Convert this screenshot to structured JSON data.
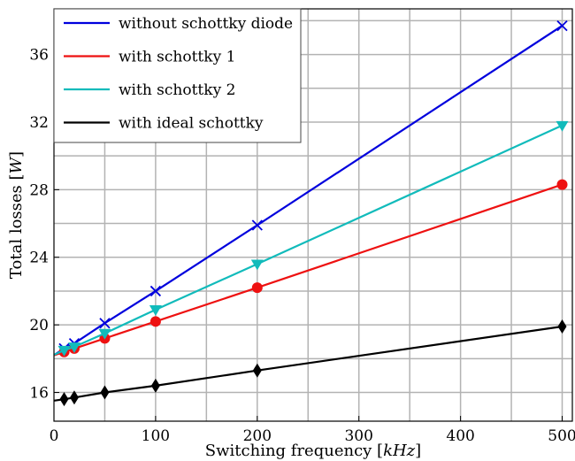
{
  "chart_data": {
    "type": "line",
    "title": "",
    "xlabel": "Switching frequency [kHz]",
    "xlabel_parts": {
      "prefix": "Switching frequency [",
      "unit": "kHz",
      "suffix": "]"
    },
    "ylabel": "Total losses [W]",
    "ylabel_parts": {
      "prefix": "Total losses [",
      "unit": "W",
      "suffix": "]"
    },
    "xlim": [
      0,
      510
    ],
    "ylim": [
      14.3,
      38.7
    ],
    "xticks": [
      0,
      100,
      200,
      300,
      400,
      500
    ],
    "yticks": [
      16,
      20,
      24,
      28,
      32,
      36
    ],
    "x_minor_gridlines": [
      50,
      150,
      250,
      350,
      450
    ],
    "y_minor_gridlines": [
      18,
      22,
      26,
      30,
      34,
      38
    ],
    "grid": true,
    "legend_position": "top-left",
    "series": [
      {
        "name": "without schottky diode",
        "color": "#0000dd",
        "marker": "x",
        "x": [
          10,
          20,
          50,
          100,
          200,
          500
        ],
        "y": [
          18.6,
          18.9,
          20.1,
          22.0,
          25.9,
          37.7
        ]
      },
      {
        "name": "with schottky 1",
        "color": "#ee1111",
        "marker": "circle",
        "x": [
          10,
          20,
          50,
          100,
          200,
          500
        ],
        "y": [
          18.4,
          18.6,
          19.2,
          20.2,
          22.2,
          28.3
        ]
      },
      {
        "name": "with schottky 2",
        "color": "#11bbbb",
        "marker": "triangle-down",
        "x": [
          10,
          20,
          50,
          100,
          200,
          500
        ],
        "y": [
          18.5,
          18.7,
          19.5,
          20.9,
          23.6,
          31.8
        ]
      },
      {
        "name": "with ideal schottky",
        "color": "#000000",
        "marker": "diamond",
        "x": [
          10,
          20,
          50,
          100,
          200,
          500
        ],
        "y": [
          15.6,
          15.7,
          16.0,
          16.4,
          17.3,
          19.9
        ]
      }
    ]
  }
}
